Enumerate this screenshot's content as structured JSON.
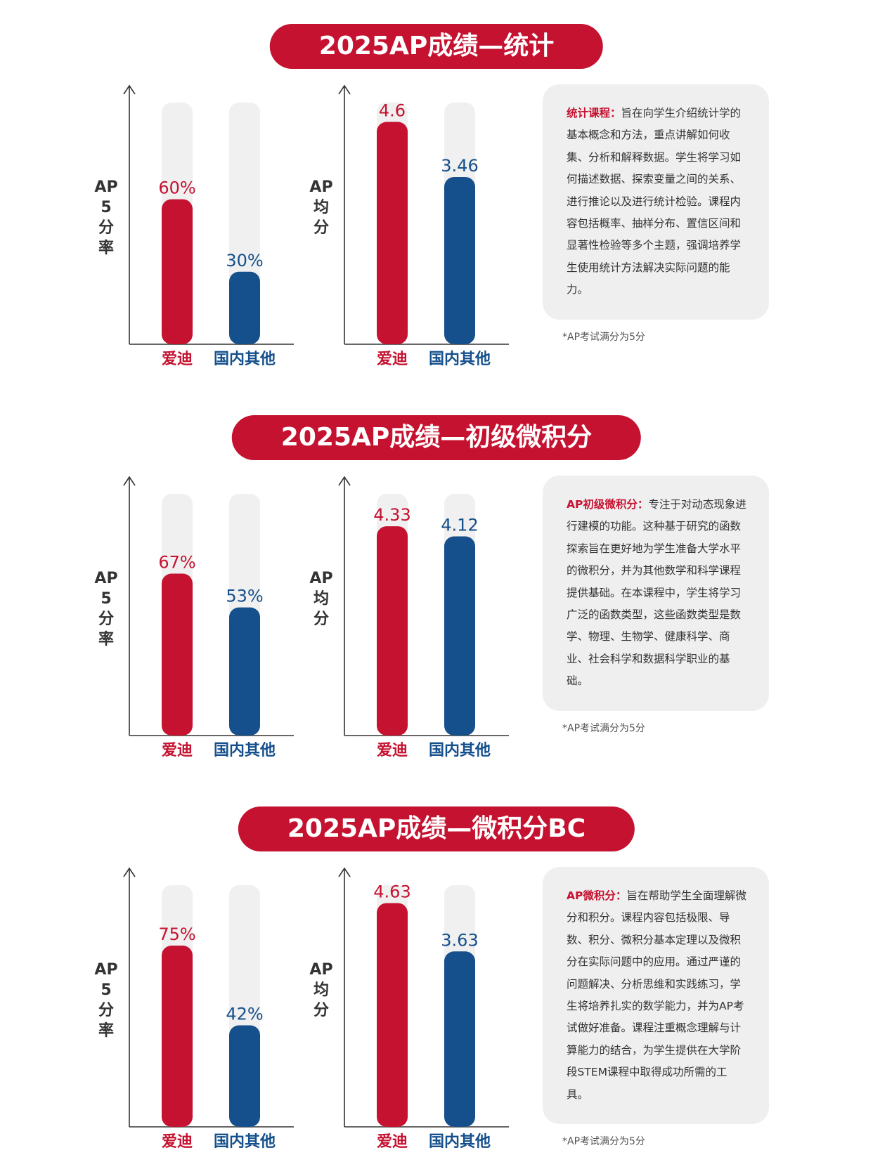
{
  "colors": {
    "accent_red": "#c51230",
    "accent_blue": "#15508c",
    "track": "#f0f0f0",
    "axis": "#333333"
  },
  "category_labels": [
    "爱迪",
    "国内其他"
  ],
  "sections": [
    {
      "title": "2025AP成绩—统计",
      "pass_rate_label": "AP\n5\n分\n率",
      "avg_label": "AP\n均\n分",
      "description_key": "统计课程：",
      "description_text": "旨在向学生介绍统计学的基本概念和方法，重点讲解如何收集、分析和解释数据。学生将学习如何描述数据、探索变量之间的关系、进行推论以及进行统计检验。课程内容包括概率、抽样分布、置信区间和显著性检验等多个主题，强调培养学生使用统计方法解决实际问题的能力。",
      "note": "*AP考试满分为5分"
    },
    {
      "title": "2025AP成绩—初级微积分",
      "pass_rate_label": "AP\n5\n分\n率",
      "avg_label": "AP\n均\n分",
      "description_key": "AP初级微积分：",
      "description_text": "专注于对动态现象进行建模的功能。这种基于研究的函数探索旨在更好地为学生准备大学水平的微积分，并为其他数学和科学课程提供基础。在本课程中，学生将学习广泛的函数类型，这些函数类型是数学、物理、生物学、健康科学、商业、社会科学和数据科学职业的基础。",
      "note": "*AP考试满分为5分"
    },
    {
      "title": "2025AP成绩—微积分BC",
      "pass_rate_label": "AP\n5\n分\n率",
      "avg_label": "AP\n均\n分",
      "description_key": "AP微积分：",
      "description_text": "旨在帮助学生全面理解微分和积分。课程内容包括极限、导数、积分、微积分基本定理以及微积分在实际问题中的应用。通过严谨的问题解决、分析思维和实践练习，学生将培养扎实的数学能力，并为AP考试做好准备。课程注重概念理解与计算能力的结合，为学生提供在大学阶段STEM课程中取得成功所需的工具。",
      "note": "*AP考试满分为5分"
    }
  ],
  "chart_data": [
    {
      "type": "bar",
      "categories": [
        "爱迪",
        "国内其他"
      ],
      "values": [
        60,
        30
      ],
      "value_labels": [
        "60%",
        "30%"
      ],
      "ylim": [
        0,
        100
      ],
      "ylabel": "AP 5分率",
      "title": ""
    },
    {
      "type": "bar",
      "categories": [
        "爱迪",
        "国内其他"
      ],
      "values": [
        4.6,
        3.46
      ],
      "value_labels": [
        "4.6",
        "3.46"
      ],
      "ylim": [
        0,
        5
      ],
      "ylabel": "AP 均分",
      "title": ""
    },
    {
      "type": "bar",
      "categories": [
        "爱迪",
        "国内其他"
      ],
      "values": [
        67,
        53
      ],
      "value_labels": [
        "67%",
        "53%"
      ],
      "ylim": [
        0,
        100
      ],
      "ylabel": "AP 5分率",
      "title": ""
    },
    {
      "type": "bar",
      "categories": [
        "爱迪",
        "国内其他"
      ],
      "values": [
        4.33,
        4.12
      ],
      "value_labels": [
        "4.33",
        "4.12"
      ],
      "ylim": [
        0,
        5
      ],
      "ylabel": "AP 均分",
      "title": ""
    },
    {
      "type": "bar",
      "categories": [
        "爱迪",
        "国内其他"
      ],
      "values": [
        75,
        42
      ],
      "value_labels": [
        "75%",
        "42%"
      ],
      "ylim": [
        0,
        100
      ],
      "ylabel": "AP 5分率",
      "title": ""
    },
    {
      "type": "bar",
      "categories": [
        "爱迪",
        "国内其他"
      ],
      "values": [
        4.63,
        3.63
      ],
      "value_labels": [
        "4.63",
        "3.63"
      ],
      "ylim": [
        0,
        5
      ],
      "ylabel": "AP 均分",
      "title": ""
    }
  ]
}
